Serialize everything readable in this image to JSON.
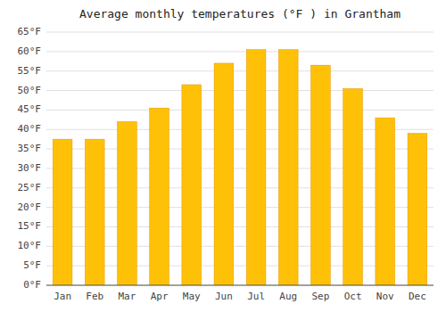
{
  "chart_data": {
    "type": "bar",
    "title": "Average monthly temperatures (°F ) in Grantham",
    "categories": [
      "Jan",
      "Feb",
      "Mar",
      "Apr",
      "May",
      "Jun",
      "Jul",
      "Aug",
      "Sep",
      "Oct",
      "Nov",
      "Dec"
    ],
    "values": [
      37.5,
      37.5,
      42.0,
      45.5,
      51.5,
      57.0,
      60.5,
      60.5,
      56.5,
      50.5,
      43.0,
      39.0
    ],
    "color": "#FFC107",
    "ylim": [
      0,
      65
    ],
    "yticks": [
      {
        "value": 0,
        "label": "0°F"
      },
      {
        "value": 5,
        "label": "5°F"
      },
      {
        "value": 10,
        "label": "10°F"
      },
      {
        "value": 15,
        "label": "15°F"
      },
      {
        "value": 20,
        "label": "20°F"
      },
      {
        "value": 25,
        "label": "25°F"
      },
      {
        "value": 30,
        "label": "30°F"
      },
      {
        "value": 35,
        "label": "35°F"
      },
      {
        "value": 40,
        "label": "40°F"
      },
      {
        "value": 45,
        "label": "45°F"
      },
      {
        "value": 50,
        "label": "50°F"
      },
      {
        "value": 55,
        "label": "55°F"
      },
      {
        "value": 60,
        "label": "60°F"
      },
      {
        "value": 65,
        "label": "65°F"
      }
    ],
    "grid": true
  }
}
